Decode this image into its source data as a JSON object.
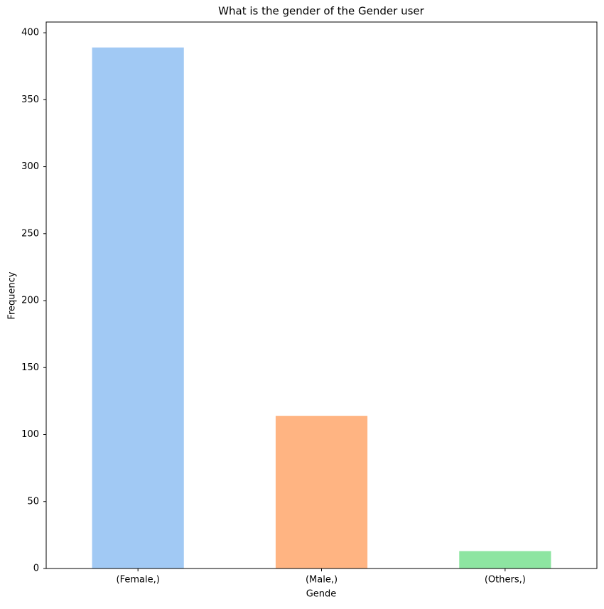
{
  "chart_data": {
    "type": "bar",
    "title": "What is the gender of the Gender user",
    "xlabel": "Gende",
    "ylabel": "Frequency",
    "categories": [
      "(Female,)",
      "(Male,)",
      "(Others,)"
    ],
    "values": [
      389,
      114,
      13
    ],
    "colors": [
      "#a1c9f4",
      "#ffb482",
      "#8de5a1"
    ],
    "ylim": [
      0,
      408
    ],
    "yticks": [
      0,
      50,
      100,
      150,
      200,
      250,
      300,
      350,
      400
    ],
    "grid": false
  }
}
